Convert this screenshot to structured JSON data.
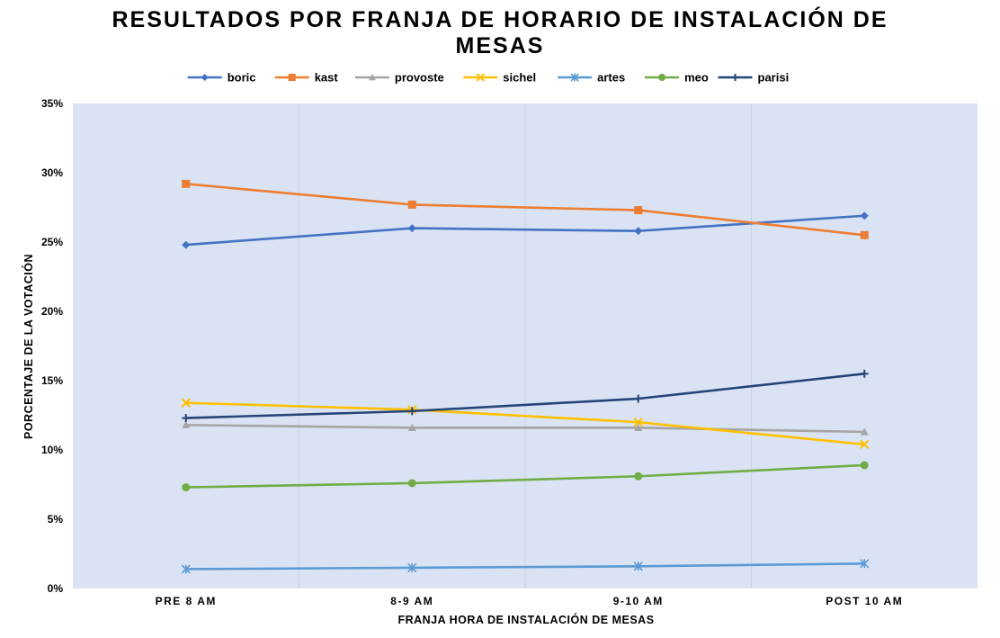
{
  "chart_data": {
    "type": "line",
    "title_lines": [
      "RESULTADOS POR FRANJA DE HORARIO DE INSTALACIÓN DE",
      "MESAS"
    ],
    "xlabel": "FRANJA HORA DE INSTALACIÓN DE MESAS",
    "ylabel": "PORCENTAJE DE LA VOTACIÓN",
    "categories": [
      "PRE 8 AM",
      "8-9 AM",
      "9-10 AM",
      "POST 10 AM"
    ],
    "ylim": [
      0,
      0.35
    ],
    "yticks": [
      {
        "value": 0,
        "label": "0%"
      },
      {
        "value": 0.05,
        "label": "5%"
      },
      {
        "value": 0.1,
        "label": "10%"
      },
      {
        "value": 0.15,
        "label": "15%"
      },
      {
        "value": 0.2,
        "label": "20%"
      },
      {
        "value": 0.25,
        "label": "25%"
      },
      {
        "value": 0.3,
        "label": "30%"
      },
      {
        "value": 0.35,
        "label": "35%"
      }
    ],
    "legend_position": "top",
    "plot_background": "#DAE3F3",
    "series": [
      {
        "name": "boric",
        "color": "#4472C4",
        "marker": "diamond",
        "values": [
          0.248,
          0.26,
          0.258,
          0.269
        ]
      },
      {
        "name": "kast",
        "color": "#ED7D31",
        "marker": "square",
        "values": [
          0.292,
          0.277,
          0.273,
          0.255
        ]
      },
      {
        "name": "provoste",
        "color": "#A5A5A5",
        "marker": "triangle",
        "values": [
          0.118,
          0.116,
          0.116,
          0.113
        ]
      },
      {
        "name": "sichel",
        "color": "#FFC000",
        "marker": "x",
        "values": [
          0.134,
          0.129,
          0.12,
          0.104
        ]
      },
      {
        "name": "artes",
        "color": "#5B9BD5",
        "marker": "star",
        "values": [
          0.014,
          0.015,
          0.016,
          0.018
        ]
      },
      {
        "name": "meo",
        "color": "#70AD47",
        "marker": "circle",
        "values": [
          0.073,
          0.076,
          0.081,
          0.089
        ]
      },
      {
        "name": "parisi",
        "color": "#264478",
        "marker": "plus",
        "values": [
          0.123,
          0.128,
          0.137,
          0.155
        ]
      }
    ]
  }
}
